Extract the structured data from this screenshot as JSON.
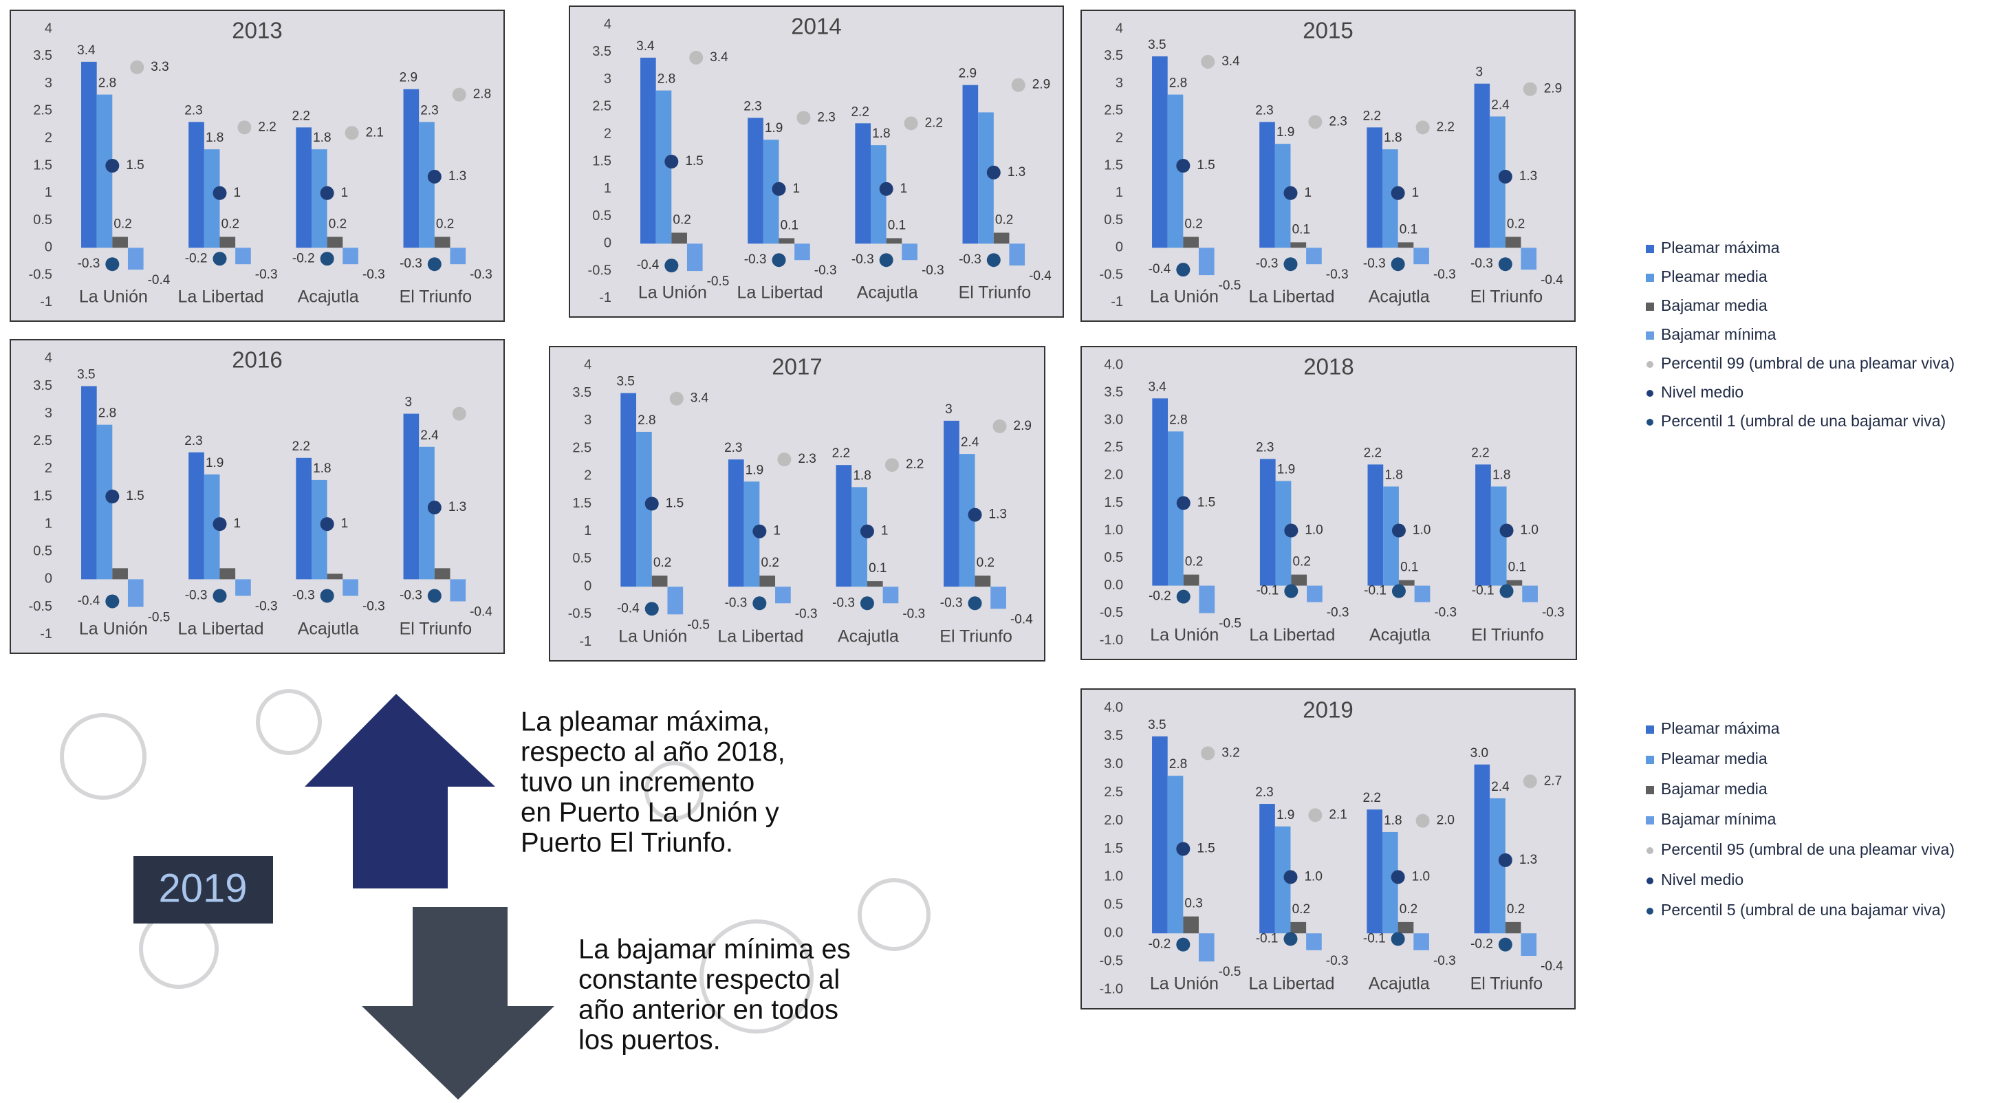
{
  "chart_data": [
    {
      "type": "bar",
      "title": "2013",
      "categories": [
        "La Unión",
        "La Libertad",
        "Acajutla",
        "El Triunfo"
      ],
      "ylim": [
        -1,
        4
      ],
      "yticks": [
        -1,
        -0.5,
        0,
        0.5,
        1,
        1.5,
        2,
        2.5,
        3,
        3.5,
        4
      ],
      "series": [
        {
          "color": "#3a6fd0",
          "values": [
            3.4,
            2.3,
            2.2,
            2.9
          ]
        },
        {
          "color": "#5b9ae0",
          "values": [
            2.8,
            1.8,
            1.8,
            2.3
          ]
        },
        {
          "color": "#5f5f5f",
          "values": [
            0.2,
            0.2,
            0.2,
            0.2
          ]
        },
        {
          "color": "#6a9ee4",
          "values": [
            -0.4,
            -0.3,
            -0.3,
            -0.3
          ]
        },
        {
          "color": "#bdbdbd",
          "values": [
            3.3,
            2.2,
            2.1,
            2.8
          ]
        },
        {
          "color": "#1f3e78",
          "values": [
            1.5,
            1,
            1,
            1.3
          ]
        },
        {
          "color": "#1f4e80",
          "values": [
            -0.3,
            -0.2,
            -0.2,
            -0.3
          ]
        }
      ]
    },
    {
      "type": "bar",
      "title": "2014",
      "categories": [
        "La Unión",
        "La Libertad",
        "Acajutla",
        "El Triunfo"
      ],
      "ylim": [
        -1,
        4
      ],
      "yticks": [
        -1,
        -0.5,
        0,
        0.5,
        1,
        1.5,
        2,
        2.5,
        3,
        3.5,
        4
      ],
      "series": [
        {
          "color": "#3a6fd0",
          "values": [
            3.4,
            2.3,
            2.2,
            2.9
          ]
        },
        {
          "color": "#5b9ae0",
          "values": [
            2.8,
            1.9,
            1.8,
            2.4
          ],
          "value_labels": [
            "2.8",
            "1.9",
            "1.8",
            null
          ]
        },
        {
          "color": "#5f5f5f",
          "values": [
            0.2,
            0.1,
            0.1,
            0.2
          ]
        },
        {
          "color": "#6a9ee4",
          "values": [
            -0.5,
            -0.3,
            -0.3,
            -0.4
          ]
        },
        {
          "color": "#bdbdbd",
          "values": [
            3.4,
            2.3,
            2.2,
            2.9
          ]
        },
        {
          "color": "#1f3e78",
          "values": [
            1.5,
            1,
            1,
            1.3
          ]
        },
        {
          "color": "#1f4e80",
          "values": [
            -0.4,
            -0.3,
            -0.3,
            -0.3
          ]
        }
      ]
    },
    {
      "type": "bar",
      "title": "2015",
      "categories": [
        "La Unión",
        "La Libertad",
        "Acajutla",
        "El Triunfo"
      ],
      "ylim": [
        -1,
        4
      ],
      "yticks": [
        -1,
        -0.5,
        0,
        0.5,
        1,
        1.5,
        2,
        2.5,
        3,
        3.5,
        4
      ],
      "series": [
        {
          "color": "#3a6fd0",
          "values": [
            3.5,
            2.3,
            2.2,
            3
          ]
        },
        {
          "color": "#5b9ae0",
          "values": [
            2.8,
            1.9,
            1.8,
            2.4
          ]
        },
        {
          "color": "#5f5f5f",
          "values": [
            0.2,
            0.1,
            0.1,
            0.2
          ]
        },
        {
          "color": "#6a9ee4",
          "values": [
            -0.5,
            -0.3,
            -0.3,
            -0.4
          ]
        },
        {
          "color": "#bdbdbd",
          "values": [
            3.4,
            2.3,
            2.2,
            2.9
          ]
        },
        {
          "color": "#1f3e78",
          "values": [
            1.5,
            1,
            1,
            1.3
          ]
        },
        {
          "color": "#1f4e80",
          "values": [
            -0.4,
            -0.3,
            -0.3,
            -0.3
          ]
        }
      ]
    },
    {
      "type": "bar",
      "title": "2016",
      "categories": [
        "La Unión",
        "La Libertad",
        "Acajutla",
        "El Triunfo"
      ],
      "ylim": [
        -1,
        4
      ],
      "yticks": [
        -1,
        -0.5,
        0,
        0.5,
        1,
        1.5,
        2,
        2.5,
        3,
        3.5,
        4
      ],
      "series": [
        {
          "color": "#3a6fd0",
          "values": [
            3.5,
            2.3,
            2.2,
            3
          ]
        },
        {
          "color": "#5b9ae0",
          "values": [
            2.8,
            1.9,
            1.8,
            2.4
          ]
        },
        {
          "color": "#5f5f5f",
          "values": [
            0.2,
            0.2,
            0.1,
            0.2
          ],
          "value_labels": [
            null,
            null,
            null,
            null
          ]
        },
        {
          "color": "#6a9ee4",
          "values": [
            -0.5,
            -0.3,
            -0.3,
            -0.4
          ]
        },
        {
          "color": "#bdbdbd",
          "values": [
            null,
            null,
            null,
            3
          ],
          "value_labels": [
            null,
            null,
            null,
            null
          ]
        },
        {
          "color": "#1f3e78",
          "values": [
            1.5,
            1,
            1,
            1.3
          ]
        },
        {
          "color": "#1f4e80",
          "values": [
            -0.4,
            -0.3,
            -0.3,
            -0.3
          ]
        }
      ]
    },
    {
      "type": "bar",
      "title": "2017",
      "categories": [
        "La Unión",
        "La Libertad",
        "Acajutla",
        "El Triunfo"
      ],
      "ylim": [
        -1,
        4
      ],
      "yticks": [
        -1,
        -0.5,
        0,
        0.5,
        1,
        1.5,
        2,
        2.5,
        3,
        3.5,
        4
      ],
      "series": [
        {
          "color": "#3a6fd0",
          "values": [
            3.5,
            2.3,
            2.2,
            3
          ]
        },
        {
          "color": "#5b9ae0",
          "values": [
            2.8,
            1.9,
            1.8,
            2.4
          ]
        },
        {
          "color": "#5f5f5f",
          "values": [
            0.2,
            0.2,
            0.1,
            0.2
          ]
        },
        {
          "color": "#6a9ee4",
          "values": [
            -0.5,
            -0.3,
            -0.3,
            -0.4
          ]
        },
        {
          "color": "#bdbdbd",
          "values": [
            3.4,
            2.3,
            2.2,
            2.9
          ]
        },
        {
          "color": "#1f3e78",
          "values": [
            1.5,
            1,
            1,
            1.3
          ]
        },
        {
          "color": "#1f4e80",
          "values": [
            -0.4,
            -0.3,
            -0.3,
            -0.3
          ]
        }
      ]
    },
    {
      "type": "bar",
      "title": "2018",
      "categories": [
        "La Unión",
        "La Libertad",
        "Acajutla",
        "El Triunfo"
      ],
      "ylim": [
        -1,
        4
      ],
      "yticks": [
        {
          "value": -1,
          "label": "-1.0"
        },
        -0.5,
        {
          "value": 0,
          "label": "0.0"
        },
        0.5,
        {
          "value": 1,
          "label": "1.0"
        },
        1.5,
        {
          "value": 2,
          "label": "2.0"
        },
        2.5,
        {
          "value": 3,
          "label": "3.0"
        },
        3.5,
        {
          "value": 4,
          "label": "4.0"
        }
      ],
      "series": [
        {
          "name": "Pleamar máxima",
          "color": "#3a6fd0",
          "values": [
            3.4,
            2.3,
            2.2,
            2.2
          ]
        },
        {
          "name": "Pleamar media",
          "color": "#5b9ae0",
          "values": [
            2.8,
            1.9,
            1.8,
            1.8
          ]
        },
        {
          "name": "Bajamar media",
          "color": "#5f5f5f",
          "values": [
            0.2,
            0.2,
            0.1,
            0.1
          ]
        },
        {
          "name": "Bajamar mínima",
          "color": "#6a9ee4",
          "values": [
            -0.5,
            -0.3,
            -0.3,
            -0.3
          ]
        },
        {
          "name": "Percentil 99 (umbral de una pleamar viva)",
          "color": "#bdbdbd",
          "values": [
            null,
            null,
            null,
            null
          ]
        },
        {
          "name": "Nivel medio",
          "color": "#1f3e78",
          "values": [
            1.5,
            1,
            1,
            1
          ],
          "value_labels": [
            "1.5",
            "1.0",
            "1.0",
            "1.0"
          ]
        },
        {
          "name": "Percentil 1 (umbral de una bajamar viva)",
          "color": "#1f4e80",
          "values": [
            -0.2,
            -0.1,
            -0.1,
            -0.1
          ]
        }
      ]
    },
    {
      "type": "bar",
      "title": "2019",
      "categories": [
        "La Unión",
        "La Libertad",
        "Acajutla",
        "El Triunfo"
      ],
      "ylim": [
        -1,
        4
      ],
      "yticks": [
        {
          "value": -1,
          "label": "-1.0"
        },
        -0.5,
        {
          "value": 0,
          "label": "0.0"
        },
        0.5,
        {
          "value": 1,
          "label": "1.0"
        },
        1.5,
        {
          "value": 2,
          "label": "2.0"
        },
        2.5,
        {
          "value": 3,
          "label": "3.0"
        },
        3.5,
        {
          "value": 4,
          "label": "4.0"
        }
      ],
      "series": [
        {
          "name": "Pleamar máxima",
          "color": "#3a6fd0",
          "values": [
            3.5,
            2.3,
            2.2,
            3
          ],
          "value_labels": [
            "3.5",
            "2.3",
            "2.2",
            "3.0"
          ]
        },
        {
          "name": "Pleamar media",
          "color": "#5b9ae0",
          "values": [
            2.8,
            1.9,
            1.8,
            2.4
          ]
        },
        {
          "name": "Bajamar media",
          "color": "#5f5f5f",
          "values": [
            0.3,
            0.2,
            0.2,
            0.2
          ]
        },
        {
          "name": "Bajamar mínima",
          "color": "#6a9ee4",
          "values": [
            -0.5,
            -0.3,
            -0.3,
            -0.4
          ]
        },
        {
          "name": "Percentil 95 (umbral de una pleamar viva)",
          "color": "#bdbdbd",
          "values": [
            3.2,
            2.1,
            2,
            2.7
          ],
          "value_labels": [
            "3.2",
            "2.1",
            "2.0",
            "2.7"
          ]
        },
        {
          "name": "Nivel medio",
          "color": "#1f3e78",
          "values": [
            1.5,
            1,
            1,
            1.3
          ],
          "value_labels": [
            "1.5",
            "1.0",
            "1.0",
            "1.3"
          ]
        },
        {
          "name": "Percentil 5 (umbral de una bajamar viva)",
          "color": "#1f4e80",
          "values": [
            -0.2,
            -0.1,
            -0.1,
            -0.2
          ]
        }
      ]
    }
  ],
  "badge": "2019",
  "callouts": [
    {
      "lines": [
        "La pleamar máxima,",
        "respecto al año 2018,",
        "tuvo un incremento",
        "en Puerto La Unión y",
        "Puerto El Triunfo."
      ]
    },
    {
      "lines": [
        "La bajamar mínima es",
        "constante respecto al",
        "año anterior en todos",
        "los puertos."
      ]
    }
  ]
}
